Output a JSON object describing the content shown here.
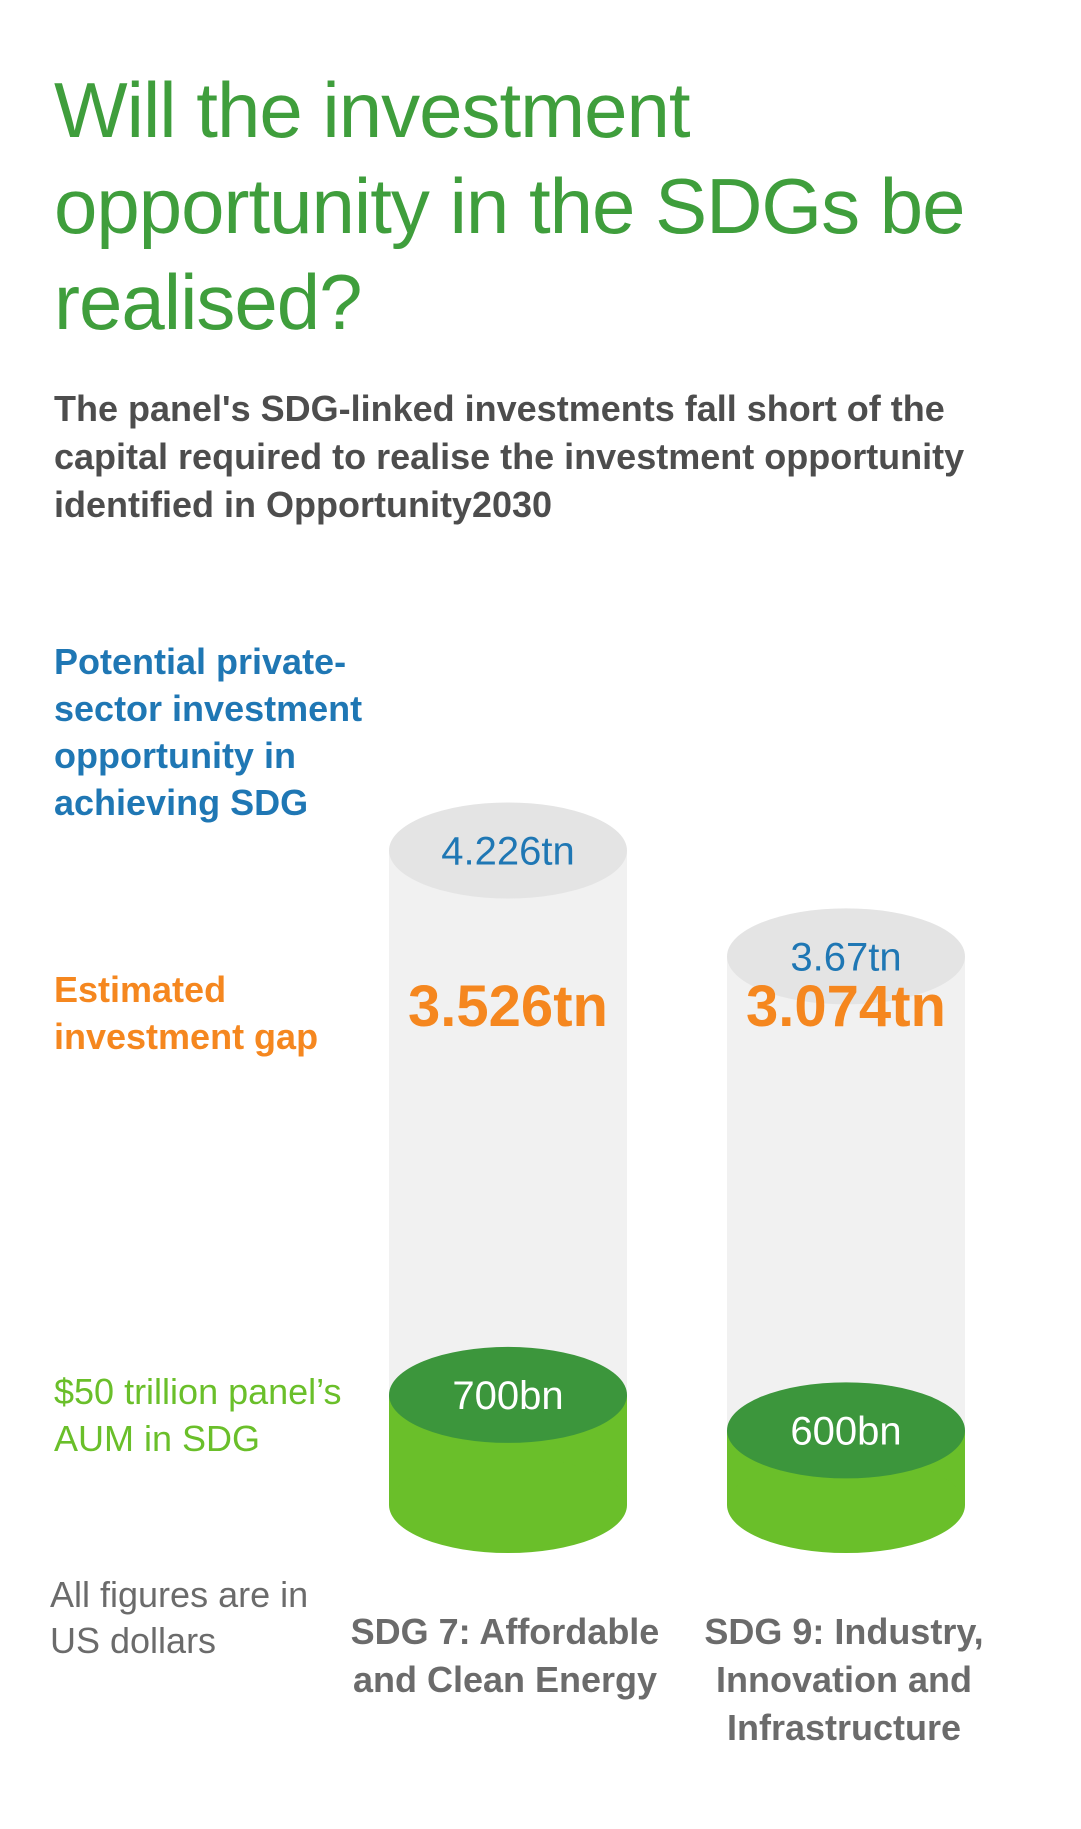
{
  "title": "Will the investment opportunity in the SDGs be realised?",
  "subtitle": "The panel's SDG-linked investments fall short of the capital required to realise the investment opportunity identified in Opportunity2030",
  "legend": {
    "potential": "Potential private-sector investment opportunity in achieving SDG",
    "gap": "Estimated investment gap",
    "aum": "$50 trillion panel’s AUM in SDG"
  },
  "note": "All figures are in US dollars",
  "colors": {
    "title_green": "#3f9e3c",
    "potential_blue": "#1f77b4",
    "gap_orange": "#f5871f",
    "aum_green": "#6abf2a",
    "aum_dark_green": "#3c963c",
    "cylinder_grey": "#f1f1f1",
    "cylinder_top_grey": "#e4e4e4",
    "text_grey": "#6b6b6b"
  },
  "chart_data": {
    "type": "bar",
    "style": "stacked-cylinder",
    "categories": [
      "SDG 7: Affordable and Clean Energy",
      "SDG 9: Industry, Innovation and Infrastructure"
    ],
    "series": [
      {
        "name": "$50 trillion panel’s AUM in SDG",
        "values": [
          0.7,
          0.6
        ],
        "labels": [
          "700bn",
          "600bn"
        ]
      },
      {
        "name": "Estimated investment gap",
        "values": [
          3.526,
          3.074
        ],
        "labels": [
          "3.526tn",
          "3.074tn"
        ]
      }
    ],
    "totals": {
      "name": "Potential private-sector investment opportunity in achieving SDG",
      "values": [
        4.226,
        3.67
      ],
      "labels": [
        "4.226tn",
        "3.67tn"
      ]
    },
    "unit": "US dollars"
  }
}
